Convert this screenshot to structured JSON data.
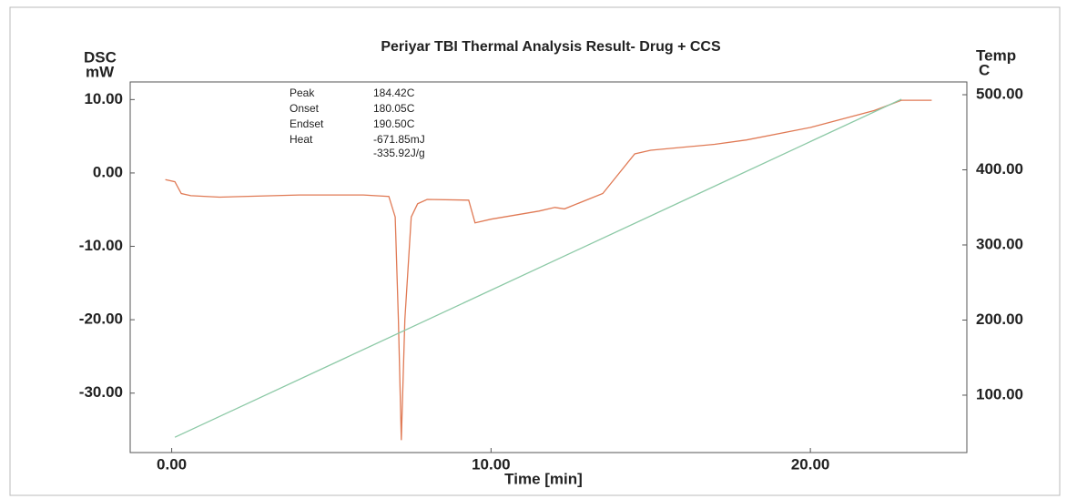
{
  "chart_data": {
    "type": "line",
    "title": "Periyar TBI Thermal Analysis Result- Drug + CCS",
    "y_label": [
      "DSC",
      "mW"
    ],
    "y2_label": [
      "Temp",
      "C"
    ],
    "x_label": "Time  [min]",
    "xlim": [
      -1.3,
      24.9
    ],
    "ylim": [
      -38.1,
      12.4
    ],
    "y2lim": [
      23.6,
      517
    ],
    "xticks": [
      {
        "value": 0,
        "label": "0.00"
      },
      {
        "value": 10,
        "label": "10.00"
      },
      {
        "value": 20,
        "label": "20.00"
      }
    ],
    "yticks": [
      {
        "value": 10,
        "label": "10.00"
      },
      {
        "value": 0,
        "label": "0.00"
      },
      {
        "value": -10,
        "label": "-10.00"
      },
      {
        "value": -20,
        "label": "-20.00"
      },
      {
        "value": -30,
        "label": "-30.00"
      }
    ],
    "y2ticks": [
      {
        "value": 500,
        "label": "500.00"
      },
      {
        "value": 400,
        "label": "400.00"
      },
      {
        "value": 300,
        "label": "300.00"
      },
      {
        "value": 200,
        "label": "200.00"
      },
      {
        "value": 100,
        "label": "100.00"
      }
    ],
    "annotations": [
      {
        "label": "Peak",
        "text": [
          "184.42C"
        ]
      },
      {
        "label": "Onset",
        "text": [
          "180.05C"
        ]
      },
      {
        "label": "Endset",
        "text": [
          "190.50C"
        ]
      },
      {
        "label": "Heat",
        "text": [
          "-671.85mJ",
          "-335.92J/g"
        ]
      }
    ],
    "series": [
      {
        "name": "DSC",
        "color": "#e07a55",
        "axis": "y",
        "x": [
          -0.2,
          0.1,
          0.3,
          0.6,
          1.5,
          4,
          6,
          6.8,
          7.0,
          7.1,
          7.19,
          7.3,
          7.5,
          7.7,
          8,
          9.3,
          9.5,
          10,
          11.5,
          12,
          12.3,
          13.5,
          14.5,
          15,
          17,
          18,
          20,
          22,
          22.85,
          23.8
        ],
        "values": [
          -0.9,
          -1.2,
          -2.8,
          -3.1,
          -3.3,
          -3.0,
          -3.0,
          -3.2,
          -6,
          -20,
          -36.4,
          -20,
          -6,
          -4.2,
          -3.6,
          -3.7,
          -6.8,
          -6.3,
          -5.2,
          -4.7,
          -4.9,
          -2.8,
          2.6,
          3.1,
          3.9,
          4.5,
          6.2,
          8.5,
          9.9,
          9.9
        ]
      },
      {
        "name": "Temp",
        "color": "#8cc9a6",
        "axis": "y2",
        "x": [
          0.1,
          22.85
        ],
        "values": [
          44,
          494
        ]
      }
    ]
  }
}
